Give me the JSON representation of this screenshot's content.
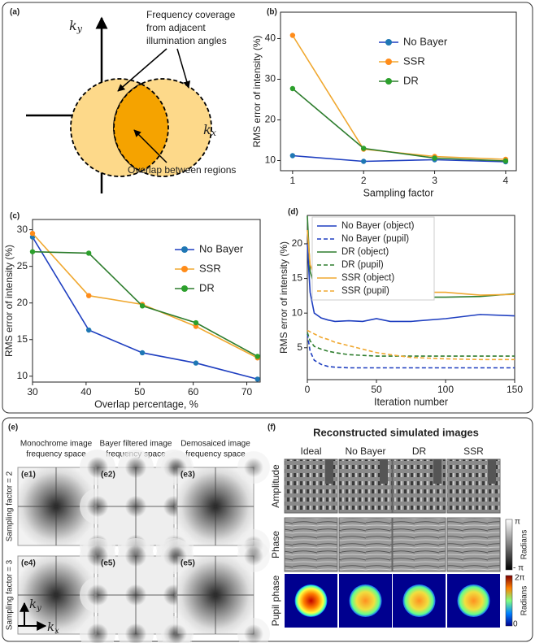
{
  "panel_a": {
    "label": "(a)",
    "coverage_note": [
      "Frequency coverage",
      "from adjacent",
      "illumination angles"
    ],
    "overlap_note": "Overlap between regions",
    "ky": {
      "base": "k",
      "sub": "y"
    },
    "kx": {
      "base": "k",
      "sub": "x"
    }
  },
  "chart_data": [
    {
      "type": "line",
      "label": "(b)",
      "xlabel": "Sampling factor",
      "ylabel": "RMS error of intensity (%)",
      "x": [
        1,
        2,
        3,
        4
      ],
      "xlim": [
        0.83,
        4.15
      ],
      "xticks": [
        1,
        2,
        3,
        4
      ],
      "ylim": [
        7.5,
        46.5
      ],
      "yticks": [
        10,
        20,
        30,
        40
      ],
      "markers": true,
      "legend": "upper right",
      "series": [
        {
          "name": "No Bayer",
          "color": "#1f3fc0",
          "marker_color": "#1f77b4",
          "values": [
            11.2,
            9.8,
            10.2,
            9.7
          ]
        },
        {
          "name": "SSR",
          "color": "#f0a830",
          "marker_color": "#ff8c1a",
          "values": [
            40.8,
            12.8,
            11,
            10.3
          ]
        },
        {
          "name": "DR",
          "color": "#2e7d2e",
          "marker_color": "#2ca02c",
          "values": [
            27.7,
            13,
            10.6,
            9.9
          ]
        }
      ]
    },
    {
      "type": "line",
      "label": "(c)",
      "xlabel": "Overlap percentage, %",
      "ylabel": "RMS error of intensity (%)",
      "x": [
        30,
        40.5,
        50.5,
        60.5,
        72
      ],
      "xlim": [
        30,
        72.5
      ],
      "xticks": [
        30,
        40,
        50,
        60,
        70
      ],
      "ylim": [
        9.2,
        31.4
      ],
      "yticks": [
        10,
        15,
        20,
        25,
        30
      ],
      "markers": true,
      "legend": "upper right",
      "series": [
        {
          "name": "No Bayer",
          "color": "#1f3fc0",
          "marker_color": "#1f77b4",
          "values": [
            29,
            16.3,
            13.2,
            11.8,
            9.6
          ]
        },
        {
          "name": "SSR",
          "color": "#f0a830",
          "marker_color": "#ff8c1a",
          "values": [
            29.5,
            21,
            19.8,
            16.8,
            12.5
          ]
        },
        {
          "name": "DR",
          "color": "#2e7d2e",
          "marker_color": "#2ca02c",
          "values": [
            27,
            26.8,
            19.6,
            17.3,
            12.7
          ]
        }
      ]
    },
    {
      "type": "line",
      "label": "(d)",
      "xlabel": "Iteration  number",
      "ylabel": "RMS error of intensity (%)",
      "x": [
        0,
        2,
        5,
        10,
        15,
        20,
        30,
        40,
        50,
        60,
        75,
        100,
        125,
        150
      ],
      "xlim": [
        0,
        150
      ],
      "xticks": [
        0,
        50,
        100,
        150
      ],
      "ylim": [
        0.4,
        24.1
      ],
      "yticks": [
        5,
        10,
        15,
        20
      ],
      "markers": false,
      "legend": "upper left",
      "series": [
        {
          "name": "No Bayer (object)",
          "color": "#1f3fc0",
          "values": [
            20,
            13,
            10,
            9.3,
            9,
            8.8,
            8.9,
            8.8,
            9.2,
            8.8,
            8.8,
            9.2,
            9.8,
            9.6
          ]
        },
        {
          "name": "No Bayer (pupil)",
          "color": "#1f3fc0",
          "dash": true,
          "values": [
            7,
            4.5,
            3.2,
            2.6,
            2.3,
            2.2,
            2.1,
            2.1,
            2.1,
            2.1,
            2.1,
            2.1,
            2.1,
            2.1
          ]
        },
        {
          "name": "DR (object)",
          "color": "#2e7d2e",
          "values": [
            24,
            16,
            14,
            13.3,
            13,
            12.8,
            12.7,
            12.6,
            13,
            12.5,
            12.3,
            12.3,
            12.4,
            12.8
          ]
        },
        {
          "name": "DR (pupil)",
          "color": "#2e7d2e",
          "dash": true,
          "values": [
            7.2,
            6,
            5.2,
            4.8,
            4.5,
            4.3,
            4,
            3.9,
            3.8,
            3.8,
            3.8,
            3.8,
            3.8,
            3.8
          ]
        },
        {
          "name": "SSR (object)",
          "color": "#f0a830",
          "values": [
            22,
            17,
            15.5,
            14.5,
            14.3,
            14,
            13.8,
            13.5,
            13.7,
            13.2,
            13,
            13,
            12.6,
            12.7
          ]
        },
        {
          "name": "SSR (pupil)",
          "color": "#f0a830",
          "dash": true,
          "values": [
            7.5,
            7.3,
            7,
            6.5,
            6.2,
            5.8,
            5.3,
            4.8,
            4.3,
            4,
            3.6,
            3.4,
            3.3,
            3.3
          ]
        }
      ]
    }
  ],
  "panel_e": {
    "label": "(e)",
    "columns": [
      [
        "Monochrome  image",
        "frequency space"
      ],
      [
        "Bayer filtered image",
        "frequency space"
      ],
      [
        "Demosaiced image",
        "frequency space"
      ]
    ],
    "rows": [
      "Sampling factor = 2",
      "Sampling factor = 3"
    ],
    "tiles": [
      [
        "(e1)",
        "(e2)",
        "(e3)"
      ],
      [
        "(e4)",
        "(e5)",
        "(e5)"
      ]
    ],
    "ky": {
      "base": "k",
      "sub": "y"
    },
    "kx": {
      "base": "k",
      "sub": "x"
    }
  },
  "panel_f": {
    "label": "(f)",
    "title": "Reconstructed simulated images",
    "columns": [
      "Ideal",
      "No Bayer",
      "DR",
      "SSR"
    ],
    "rows": [
      "Amplitude",
      "Phase",
      "Pupil phase"
    ],
    "phase_bar": {
      "top": "π",
      "bottom": "- π",
      "unit": "Radians"
    },
    "pupil_bar": {
      "top": "2π",
      "bottom": "0",
      "unit": "Radians"
    }
  }
}
